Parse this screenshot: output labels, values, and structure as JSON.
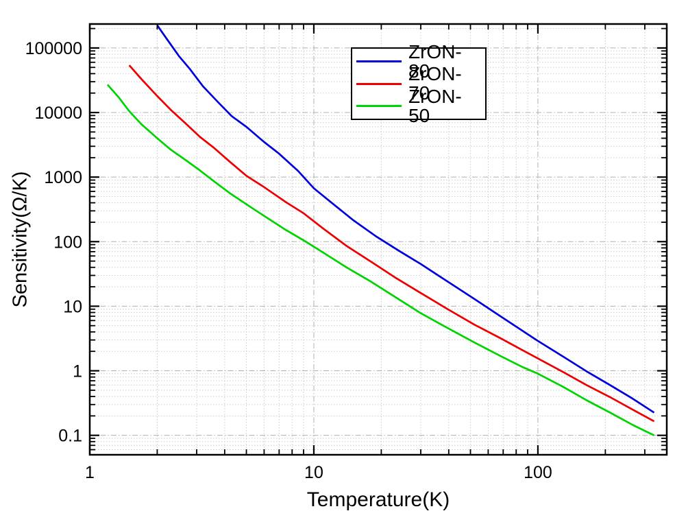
{
  "figure": {
    "background": "#ffffff",
    "plot_border_color": "#000000",
    "grid_minor_color": "#cbcbcb",
    "grid_major_color": "#b0b0b0"
  },
  "chart_data": {
    "type": "line",
    "title": "",
    "xlabel": "Temperature(K)",
    "ylabel": "Sensitivity(Ω/K)",
    "x_scale": "log",
    "y_scale": "log",
    "xlim": [
      1,
      376
    ],
    "ylim": [
      0.05,
      235000
    ],
    "x_major_ticks": [
      1,
      10,
      100
    ],
    "x_tick_labels": [
      "1",
      "10",
      "100"
    ],
    "y_major_ticks": [
      0.1,
      1,
      10,
      100,
      1000,
      10000,
      100000
    ],
    "y_tick_labels": [
      "0.1",
      "1",
      "10",
      "100",
      "1000",
      "10000",
      "100000"
    ],
    "grid": "major and minor, dotted gray, both axes",
    "ticks": "inside on all four spines",
    "legend_position": "inside top, right of center",
    "series": [
      {
        "name": "ZrON-80",
        "color": "#0000dd",
        "points": [
          [
            2.0,
            225000
          ],
          [
            2.2,
            140000
          ],
          [
            2.5,
            75000
          ],
          [
            2.8,
            47000
          ],
          [
            3.2,
            25500
          ],
          [
            3.7,
            15000
          ],
          [
            4.3,
            8800
          ],
          [
            5,
            6000
          ],
          [
            6,
            3500
          ],
          [
            7,
            2300
          ],
          [
            8.5,
            1250
          ],
          [
            10,
            670
          ],
          [
            12,
            400
          ],
          [
            15,
            215
          ],
          [
            19,
            120
          ],
          [
            24,
            72
          ],
          [
            30,
            45
          ],
          [
            40,
            23.5
          ],
          [
            52,
            13
          ],
          [
            68,
            7.0
          ],
          [
            85,
            4.2
          ],
          [
            100,
            2.9
          ],
          [
            130,
            1.65
          ],
          [
            165,
            0.98
          ],
          [
            210,
            0.6
          ],
          [
            265,
            0.37
          ],
          [
            330,
            0.225
          ]
        ]
      },
      {
        "name": "ZrON-70",
        "color": "#ee0000",
        "points": [
          [
            1.5,
            54000
          ],
          [
            1.7,
            33000
          ],
          [
            2.0,
            18000
          ],
          [
            2.3,
            11000
          ],
          [
            2.7,
            6600
          ],
          [
            3.1,
            4200
          ],
          [
            3.6,
            2800
          ],
          [
            4.2,
            1750
          ],
          [
            5,
            1050
          ],
          [
            6,
            700
          ],
          [
            7.5,
            410
          ],
          [
            9,
            275
          ],
          [
            11,
            160
          ],
          [
            14,
            86
          ],
          [
            18,
            49
          ],
          [
            23,
            28
          ],
          [
            30,
            16
          ],
          [
            40,
            8.8
          ],
          [
            52,
            5.2
          ],
          [
            68,
            3.2
          ],
          [
            85,
            2.1
          ],
          [
            100,
            1.55
          ],
          [
            130,
            0.95
          ],
          [
            165,
            0.6
          ],
          [
            210,
            0.39
          ],
          [
            265,
            0.25
          ],
          [
            330,
            0.165
          ]
        ]
      },
      {
        "name": "ZrON-50",
        "color": "#00d400",
        "points": [
          [
            1.2,
            27000
          ],
          [
            1.35,
            17000
          ],
          [
            1.5,
            10500
          ],
          [
            1.7,
            6600
          ],
          [
            2.0,
            4000
          ],
          [
            2.3,
            2650
          ],
          [
            2.7,
            1800
          ],
          [
            3.1,
            1270
          ],
          [
            3.6,
            850
          ],
          [
            4.2,
            570
          ],
          [
            5,
            380
          ],
          [
            6,
            250
          ],
          [
            7.5,
            152
          ],
          [
            9,
            105
          ],
          [
            11,
            68
          ],
          [
            14,
            40
          ],
          [
            18,
            24
          ],
          [
            23,
            14
          ],
          [
            30,
            7.8
          ],
          [
            40,
            4.5
          ],
          [
            52,
            2.75
          ],
          [
            68,
            1.7
          ],
          [
            85,
            1.15
          ],
          [
            100,
            0.9
          ],
          [
            130,
            0.56
          ],
          [
            165,
            0.35
          ],
          [
            210,
            0.225
          ],
          [
            265,
            0.145
          ],
          [
            330,
            0.1
          ]
        ]
      }
    ]
  }
}
